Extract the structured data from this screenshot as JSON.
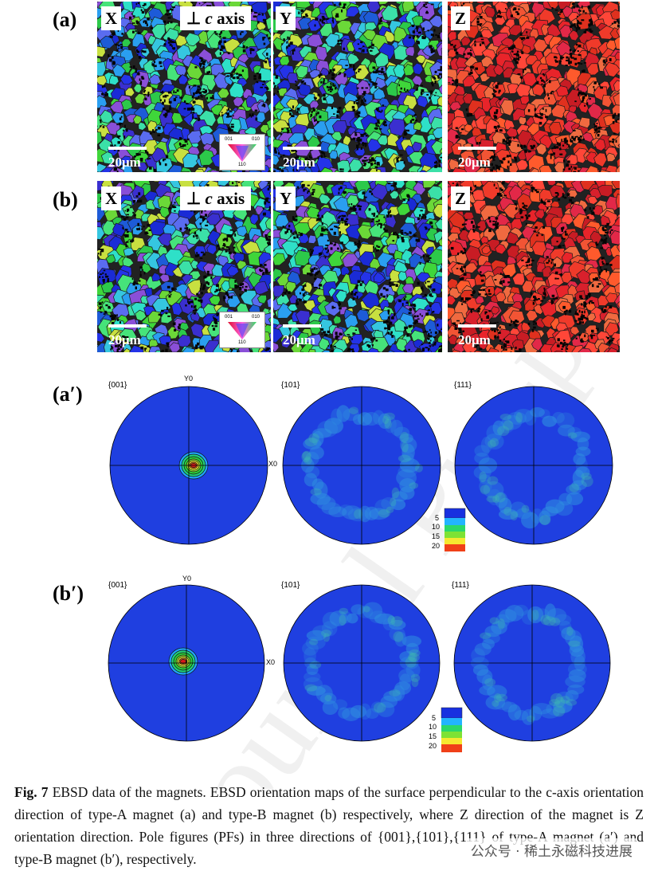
{
  "rows": {
    "a": {
      "label": "(a)"
    },
    "b": {
      "label": "(b)"
    },
    "a_prime": {
      "label": "(a′)"
    },
    "b_prime": {
      "label": "(b′)"
    }
  },
  "maps": {
    "x_tag": "X",
    "y_tag": "Y",
    "z_tag": "Z",
    "axis_symbol": "⊥",
    "axis_c": "c",
    "axis_word": "axis",
    "scale_label": "20μm",
    "ipf_labels": {
      "corner_001": "001",
      "corner_010": "010",
      "corner_110": "110"
    }
  },
  "pole_figures": {
    "titles": [
      "{001}",
      "{101}",
      "{111}"
    ],
    "axis_y": "Y0",
    "axis_x": "X0",
    "legend_ticks": [
      "5",
      "10",
      "15",
      "20"
    ]
  },
  "caption": {
    "fig_label": "Fig. 7",
    "text": " EBSD data of the magnets. EBSD orientation maps of the surface perpendicular to the c-axis orientation direction of type-A magnet (a) and type-B magnet (b) respectively, where Z direction of the magnet is Z orientation direction. Pole figures (PFs) in three directions of {001},{101},{111} of type-A magnet (a′) and type-B magnet (b′), respectively."
  },
  "watermark": {
    "text": "公众号 · 稀土永磁科技进展",
    "background_text": "Journal Pre-proof"
  },
  "colors": {
    "blue": "#1a2bd6",
    "green": "#3fd63a",
    "cyan": "#2ee0c8",
    "red": "#e8242a",
    "pf_background": "#1f3fe0"
  }
}
